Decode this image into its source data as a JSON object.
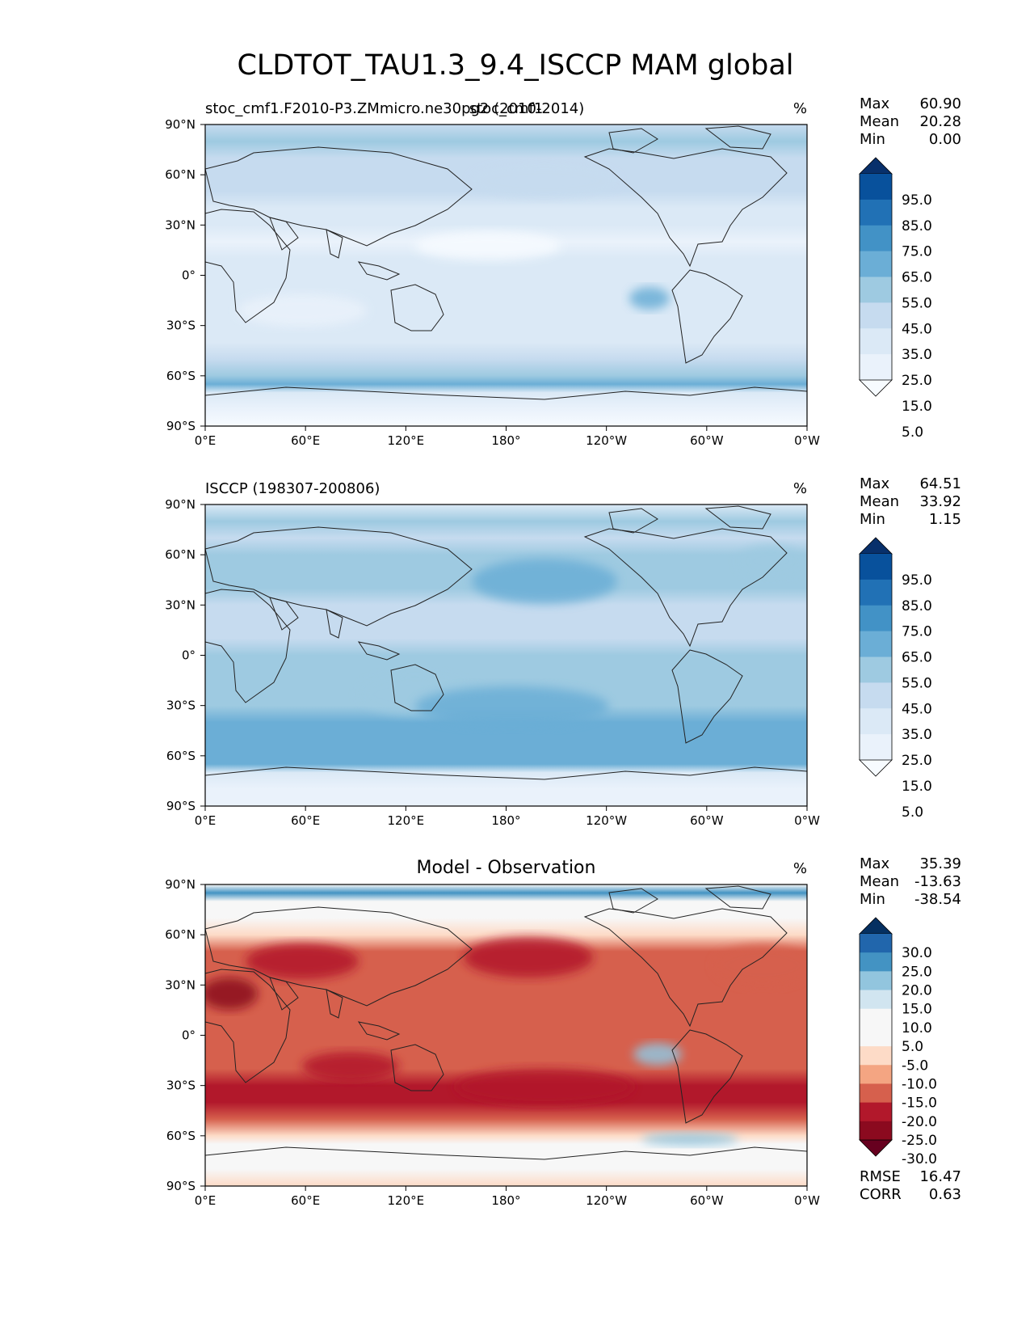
{
  "figure": {
    "title": "CLDTOT_TAU1.3_9.4_ISCCP MAM global"
  },
  "panels": [
    {
      "left_title": "stoc_cmf1.F2010-P3.ZMmicro.ne30pg2 (2010-2014)",
      "center_title": "stoc_cmf1",
      "units": "%",
      "stats": [
        {
          "label": "Max",
          "value": "60.90"
        },
        {
          "label": "Mean",
          "value": "20.28"
        },
        {
          "label": "Min",
          "value": "0.00"
        }
      ],
      "colorbar_labels": [
        "95.0",
        "85.0",
        "75.0",
        "65.0",
        "55.0",
        "45.0",
        "35.0",
        "25.0",
        "15.0",
        "5.0"
      ],
      "colorbar_colors": [
        "#08306b",
        "#08519c",
        "#2171b5",
        "#4292c6",
        "#6baed6",
        "#9ecae1",
        "#c6dbef",
        "#dbe9f6",
        "#eaf2fb",
        "#f7fbff"
      ],
      "extra_stats": []
    },
    {
      "left_title": "ISCCP (198307-200806)",
      "center_title": "",
      "units": "%",
      "stats": [
        {
          "label": "Max",
          "value": "64.51"
        },
        {
          "label": "Mean",
          "value": "33.92"
        },
        {
          "label": "Min",
          "value": "1.15"
        }
      ],
      "colorbar_labels": [
        "95.0",
        "85.0",
        "75.0",
        "65.0",
        "55.0",
        "45.0",
        "35.0",
        "25.0",
        "15.0",
        "5.0"
      ],
      "colorbar_colors": [
        "#08306b",
        "#08519c",
        "#2171b5",
        "#4292c6",
        "#6baed6",
        "#9ecae1",
        "#c6dbef",
        "#dbe9f6",
        "#eaf2fb",
        "#f7fbff"
      ],
      "extra_stats": []
    },
    {
      "left_title": "",
      "center_title": "Model - Observation",
      "units": "%",
      "stats": [
        {
          "label": "Max",
          "value": "35.39"
        },
        {
          "label": "Mean",
          "value": "-13.63"
        },
        {
          "label": "Min",
          "value": "-38.54"
        }
      ],
      "colorbar_labels": [
        "30.0",
        "25.0",
        "20.0",
        "15.0",
        "10.0",
        "5.0",
        "-5.0",
        "-10.0",
        "-15.0",
        "-20.0",
        "-25.0",
        "-30.0"
      ],
      "colorbar_colors": [
        "#053061",
        "#2166ac",
        "#4393c3",
        "#92c5de",
        "#d1e5f0",
        "#f7f7f7",
        "#f7f7f7",
        "#fddbc7",
        "#f4a582",
        "#d6604d",
        "#b2182b",
        "#8b0a1f",
        "#67001f"
      ],
      "extra_stats": [
        {
          "label": "RMSE",
          "value": "16.47"
        },
        {
          "label": "CORR",
          "value": "0.63"
        }
      ]
    }
  ],
  "chart_data": [
    {
      "type": "heatmap",
      "title": "stoc_cmf1",
      "subtitle": "stoc_cmf1.F2010-P3.ZMmicro.ne30pg2 (2010-2014)",
      "units": "%",
      "xticks": [
        "0°E",
        "60°E",
        "120°E",
        "180°",
        "120°W",
        "60°W",
        "0°W"
      ],
      "yticks": [
        "90°N",
        "60°N",
        "30°N",
        "0°",
        "30°S",
        "60°S",
        "90°S"
      ],
      "xlim": [
        0,
        360
      ],
      "ylim": [
        -90,
        90
      ],
      "zonal_mean": {
        "lat": [
          90,
          80,
          70,
          60,
          50,
          40,
          30,
          20,
          10,
          0,
          -10,
          -20,
          -30,
          -40,
          -50,
          -60,
          -65,
          -70,
          -80,
          -90
        ],
        "values": [
          30,
          35,
          30,
          27,
          25,
          20,
          16,
          14,
          15,
          17,
          18,
          17,
          18,
          22,
          28,
          40,
          48,
          20,
          8,
          4
        ]
      },
      "contour_levels": [
        5,
        15,
        25,
        35,
        45,
        55,
        65,
        75,
        85,
        95
      ],
      "stats": {
        "max": 60.9,
        "mean": 20.28,
        "min": 0.0
      }
    },
    {
      "type": "heatmap",
      "title": "ISCCP (198307-200806)",
      "units": "%",
      "xticks": [
        "0°E",
        "60°E",
        "120°E",
        "180°",
        "120°W",
        "60°W",
        "0°W"
      ],
      "yticks": [
        "90°N",
        "60°N",
        "30°N",
        "0°",
        "30°S",
        "60°S",
        "90°S"
      ],
      "xlim": [
        0,
        360
      ],
      "ylim": [
        -90,
        90
      ],
      "zonal_mean": {
        "lat": [
          90,
          80,
          70,
          60,
          50,
          40,
          30,
          20,
          10,
          0,
          -10,
          -20,
          -30,
          -40,
          -50,
          -60,
          -65,
          -70,
          -80,
          -90
        ],
        "values": [
          22,
          38,
          33,
          36,
          40,
          40,
          32,
          30,
          33,
          36,
          37,
          36,
          40,
          46,
          48,
          48,
          46,
          22,
          12,
          10
        ]
      },
      "contour_levels": [
        5,
        15,
        25,
        35,
        45,
        55,
        65,
        75,
        85,
        95
      ],
      "stats": {
        "max": 64.51,
        "mean": 33.92,
        "min": 1.15
      }
    },
    {
      "type": "heatmap",
      "title": "Model - Observation",
      "units": "%",
      "xticks": [
        "0°E",
        "60°E",
        "120°E",
        "180°",
        "120°W",
        "60°W",
        "0°W"
      ],
      "yticks": [
        "90°N",
        "60°N",
        "30°N",
        "0°",
        "30°S",
        "60°S",
        "90°S"
      ],
      "xlim": [
        0,
        360
      ],
      "ylim": [
        -90,
        90
      ],
      "zonal_mean": {
        "lat": [
          90,
          85,
          80,
          70,
          60,
          50,
          40,
          30,
          20,
          10,
          0,
          -10,
          -20,
          -30,
          -40,
          -50,
          -60,
          -65,
          -70,
          -80,
          -90
        ],
        "values": [
          0,
          22,
          8,
          -2,
          -8,
          -18,
          -20,
          -17,
          -16,
          -18,
          -18,
          -19,
          -19,
          -22,
          -24,
          -20,
          -8,
          2,
          -2,
          -4,
          -6
        ]
      },
      "contour_levels": [
        -30,
        -25,
        -20,
        -15,
        -10,
        -5,
        5,
        10,
        15,
        20,
        25,
        30
      ],
      "stats": {
        "max": 35.39,
        "mean": -13.63,
        "min": -38.54,
        "rmse": 16.47,
        "corr": 0.63
      }
    }
  ]
}
